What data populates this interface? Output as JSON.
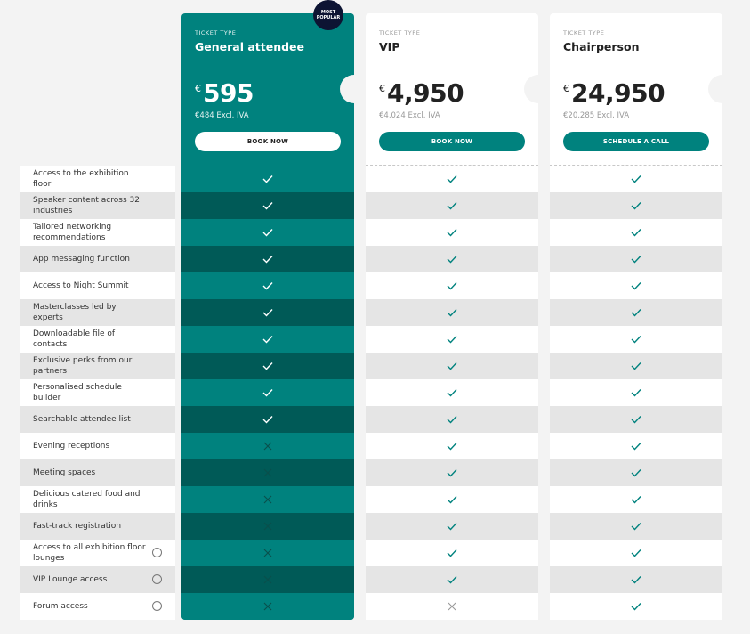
{
  "plans": [
    {
      "label": "TICKET TYPE",
      "name": "General attendee",
      "currency": "€",
      "price": "595",
      "excl": "€484 Excl. IVA",
      "button": "BOOK NOW",
      "badge": "MOST POPULAR",
      "highlight": true
    },
    {
      "label": "TICKET TYPE",
      "name": "VIP",
      "currency": "€",
      "price": "4,950",
      "excl": "€4,024 Excl. IVA",
      "button": "BOOK NOW",
      "highlight": false
    },
    {
      "label": "TICKET TYPE",
      "name": "Chairperson",
      "currency": "€",
      "price": "24,950",
      "excl": "€20,285 Excl. IVA",
      "button": "SCHEDULE A CALL",
      "highlight": false
    }
  ],
  "features": [
    {
      "label": "Access to the exhibition floor",
      "included": [
        true,
        true,
        true
      ]
    },
    {
      "label": "Speaker content across 32 industries",
      "included": [
        true,
        true,
        true
      ]
    },
    {
      "label": "Tailored networking recommendations",
      "included": [
        true,
        true,
        true
      ]
    },
    {
      "label": "App messaging function",
      "included": [
        true,
        true,
        true
      ]
    },
    {
      "label": "Access to Night Summit",
      "included": [
        true,
        true,
        true
      ]
    },
    {
      "label": "Masterclasses led by experts",
      "included": [
        true,
        true,
        true
      ]
    },
    {
      "label": "Downloadable file of contacts",
      "included": [
        true,
        true,
        true
      ]
    },
    {
      "label": "Exclusive perks from our partners",
      "included": [
        true,
        true,
        true
      ]
    },
    {
      "label": "Personalised schedule builder",
      "included": [
        true,
        true,
        true
      ]
    },
    {
      "label": "Searchable attendee list",
      "included": [
        true,
        true,
        true
      ]
    },
    {
      "label": "Evening receptions",
      "included": [
        false,
        true,
        true
      ]
    },
    {
      "label": "Meeting spaces",
      "included": [
        false,
        true,
        true
      ]
    },
    {
      "label": "Delicious catered food and drinks",
      "included": [
        false,
        true,
        true
      ]
    },
    {
      "label": "Fast-track registration",
      "included": [
        false,
        true,
        true
      ]
    },
    {
      "label": "Access to all exhibition floor lounges",
      "included": [
        false,
        true,
        true
      ],
      "info": true
    },
    {
      "label": "VIP Lounge access",
      "included": [
        false,
        true,
        true
      ],
      "info": true
    },
    {
      "label": "Forum access",
      "included": [
        false,
        false,
        true
      ],
      "info": true
    }
  ]
}
